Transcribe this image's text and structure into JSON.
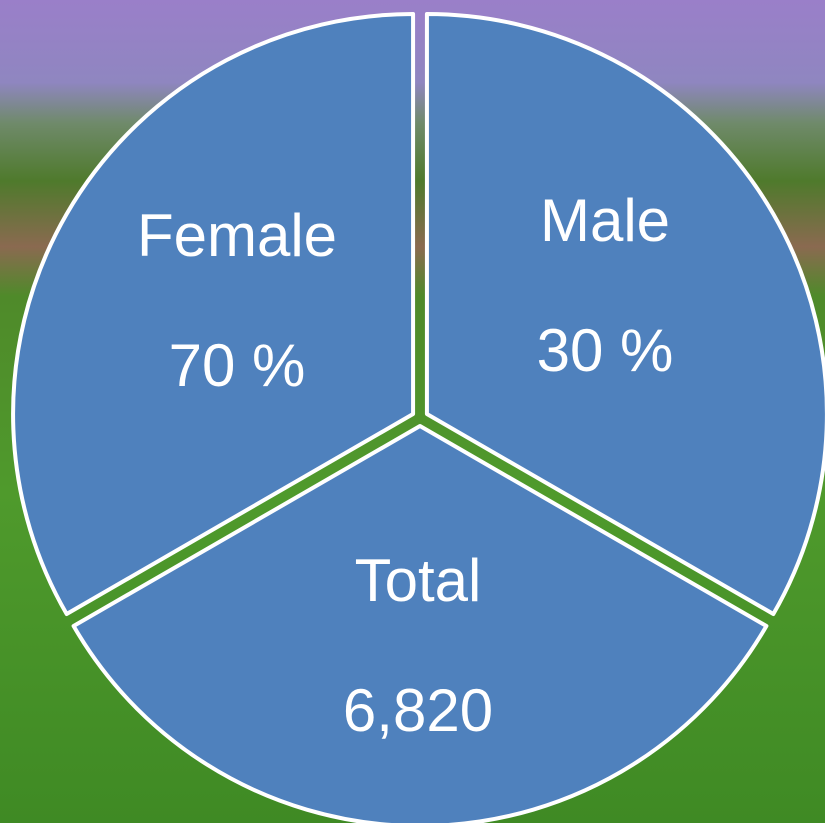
{
  "segments": [
    {
      "label": "Female",
      "value": "70 %"
    },
    {
      "label": "Male",
      "value": "30 %"
    },
    {
      "label": "Total",
      "value": "6,820"
    }
  ]
}
